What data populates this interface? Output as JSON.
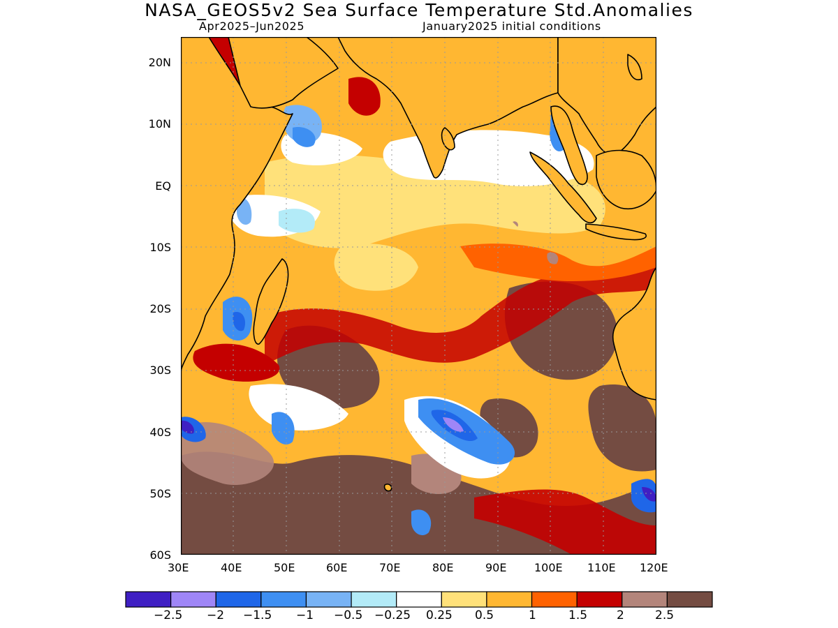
{
  "title": "NASA_GEOS5v2 Sea Surface Temperature Std.Anomalies",
  "subtitle_left": "Apr2025–Jun2025",
  "subtitle_right": "January2025 initial conditions",
  "map": {
    "lon_range": [
      30,
      120
    ],
    "lat_range": [
      -60,
      24
    ],
    "land_color": "#ffb732",
    "coast_color": "#000000",
    "grid": "dotted",
    "y_ticks": [
      "20N",
      "10N",
      "EQ",
      "10S",
      "20S",
      "30S",
      "40S",
      "50S",
      "60S"
    ],
    "x_ticks": [
      "30E",
      "40E",
      "50E",
      "60E",
      "70E",
      "80E",
      "90E",
      "100E",
      "110E",
      "120E"
    ]
  },
  "colorbar": {
    "colors": [
      "#3f1fc3",
      "#9f86f7",
      "#1f66e8",
      "#3e8ff2",
      "#78b3f5",
      "#b3ebf8",
      "#ffffff",
      "#ffe17a",
      "#ffb732",
      "#ff6200",
      "#c40000",
      "#b3857b",
      "#744c42"
    ],
    "labels": [
      "−2.5",
      "−2",
      "−1.5",
      "−1",
      "−0.5",
      "−0.25",
      "0.25",
      "0.5",
      "1",
      "1.5",
      "2",
      "2.5"
    ]
  }
}
